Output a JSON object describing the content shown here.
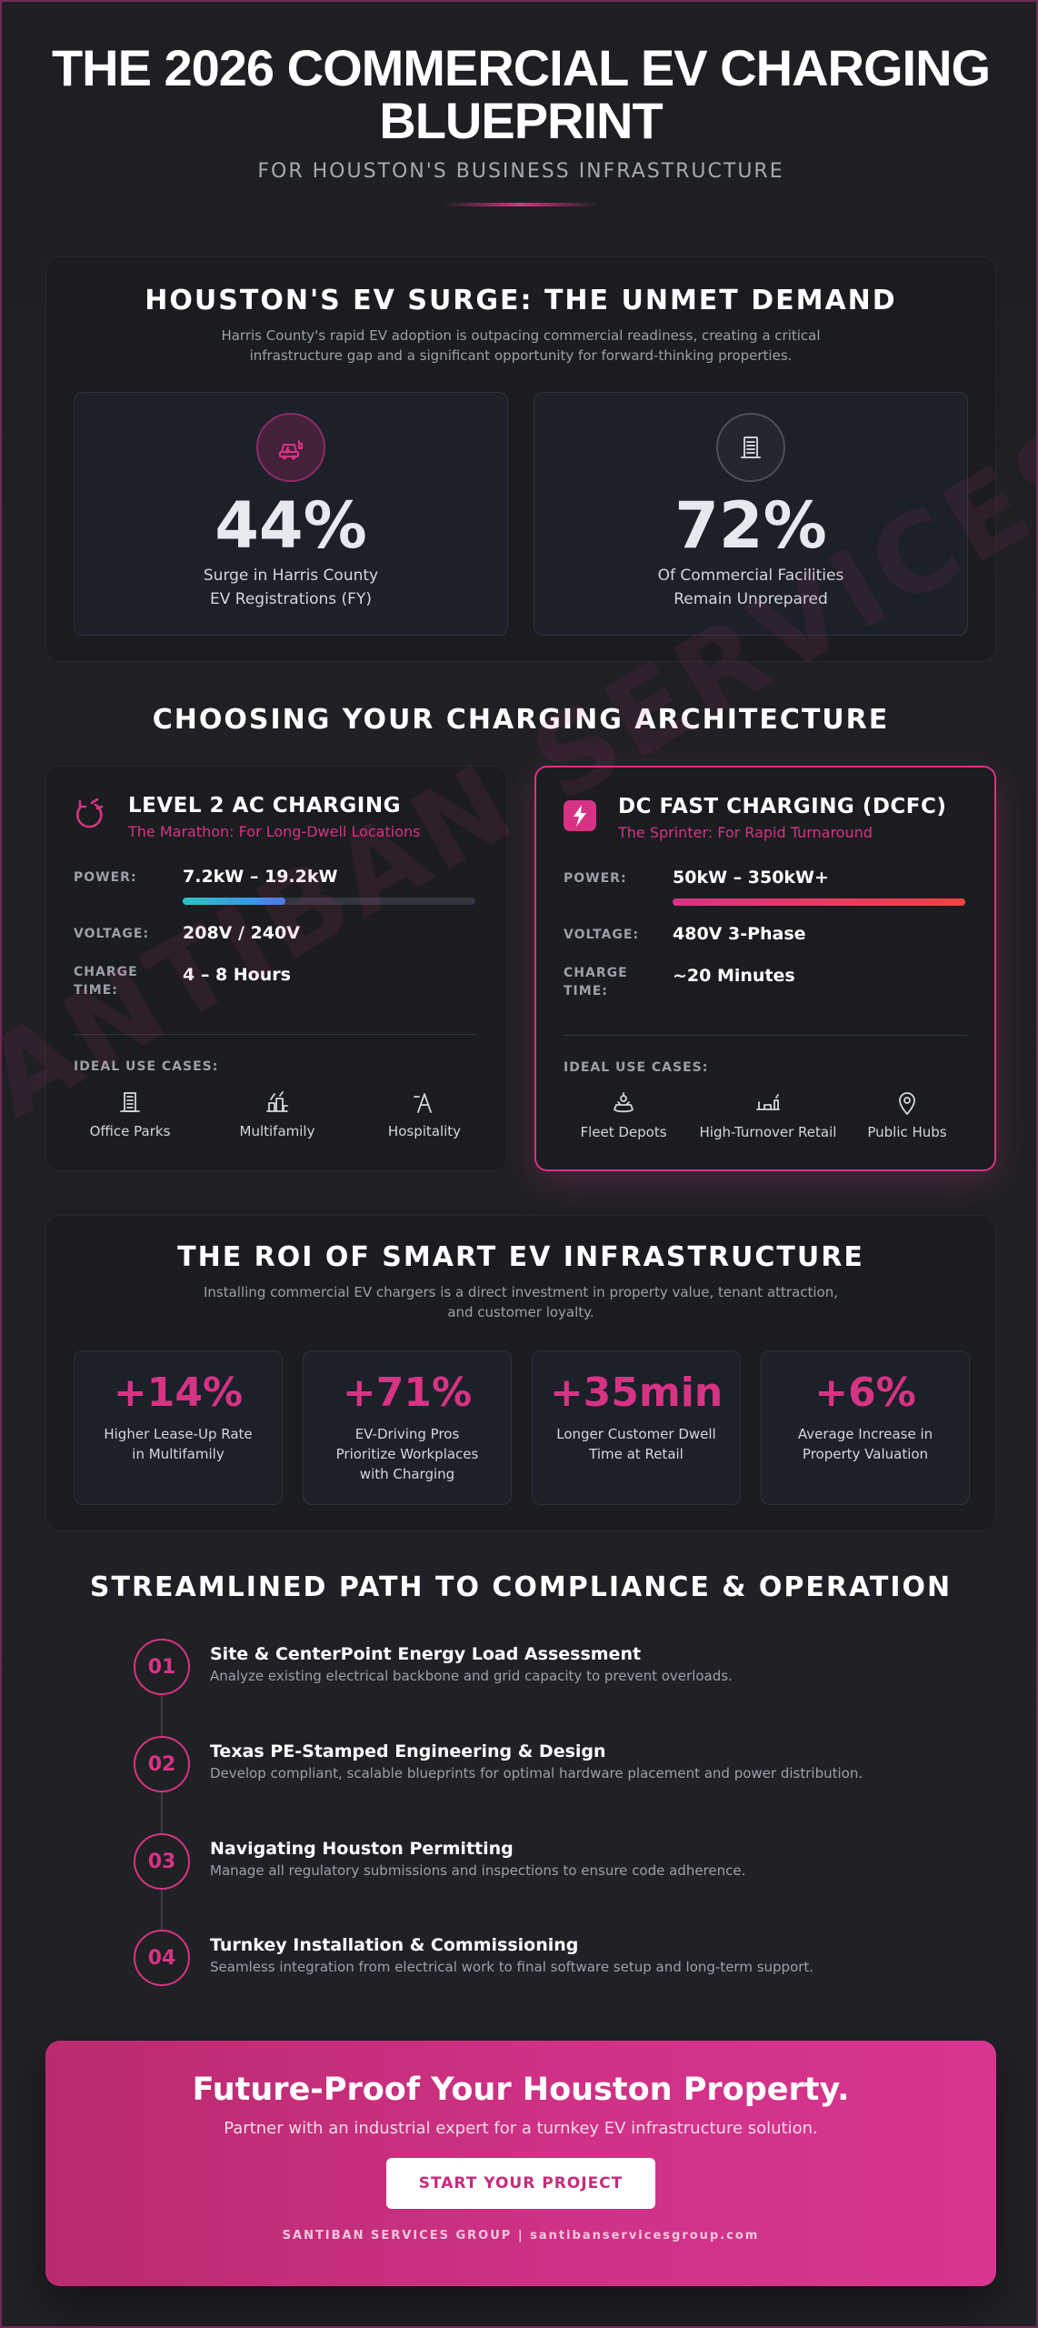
{
  "hero": {
    "title_line1": "THE 2026 COMMERCIAL EV CHARGING",
    "title_line2": "BLUEPRINT",
    "subtitle": "FOR HOUSTON'S BUSINESS INFRASTRUCTURE"
  },
  "watermark": "SANTIBAN SERVICES GROUP.CO",
  "surge": {
    "title": "HOUSTON'S EV SURGE: THE UNMET DEMAND",
    "desc_line1": "Harris County's rapid EV adoption is outpacing commercial readiness, creating a critical",
    "desc_line2": "infrastructure gap and a significant opportunity for forward-thinking properties.",
    "stats": [
      {
        "icon": "ev-car-charging-icon",
        "value": "44%",
        "label_line1": "Surge in Harris County",
        "label_line2": "EV Registrations (FY)"
      },
      {
        "icon": "building-icon",
        "value": "72%",
        "label_line1": "Of Commercial Facilities",
        "label_line2": "Remain Unprepared"
      }
    ]
  },
  "architecture": {
    "title": "CHOOSING YOUR CHARGING ARCHITECTURE",
    "cards": [
      {
        "icon": "charging-plug-icon",
        "title": "LEVEL 2 AC CHARGING",
        "tagline": "The Marathon: For Long-Dwell Locations",
        "power_key": "POWER:",
        "power": "7.2kW – 19.2kW",
        "power_bar_fraction": 0.35,
        "voltage_key": "VOLTAGE:",
        "voltage": "208V / 240V",
        "charge_key_line1": "CHARGE",
        "charge_key_line2": "TIME:",
        "charge_time": "4 – 8 Hours",
        "use_cases_key": "IDEAL USE CASES:",
        "use_cases": [
          {
            "icon": "office-building-icon",
            "label": "Office Parks"
          },
          {
            "icon": "multifamily-icon",
            "label": "Multifamily"
          },
          {
            "icon": "hospitality-icon",
            "label": "Hospitality"
          }
        ]
      },
      {
        "icon": "lightning-bolt-icon",
        "title": "DC FAST CHARGING (DCFC)",
        "tagline": "The Sprinter: For Rapid Turnaround",
        "power_key": "POWER:",
        "power": "50kW – 350kW+",
        "power_bar_fraction": 1.0,
        "voltage_key": "VOLTAGE:",
        "voltage": "480V 3-Phase",
        "charge_key_line1": "CHARGE",
        "charge_key_line2": "TIME:",
        "charge_time": "~20 Minutes",
        "use_cases_key": "IDEAL USE CASES:",
        "use_cases": [
          {
            "icon": "fleet-depot-icon",
            "label": "Fleet Depots"
          },
          {
            "icon": "retail-icon",
            "label": "High-Turnover Retail"
          },
          {
            "icon": "map-pin-icon",
            "label": "Public Hubs"
          }
        ]
      }
    ]
  },
  "roi": {
    "title": "THE ROI OF SMART EV INFRASTRUCTURE",
    "desc_line1": "Installing commercial EV chargers is a direct investment in property value, tenant attraction,",
    "desc_line2": "and customer loyalty.",
    "cards": [
      {
        "value": "+14%",
        "line1": "Higher Lease-Up Rate",
        "line2": "in Multifamily",
        "line3": ""
      },
      {
        "value": "+71%",
        "line1": "EV-Driving Pros",
        "line2": "Prioritize Workplaces",
        "line3": "with Charging"
      },
      {
        "value": "+35min",
        "line1": "Longer Customer Dwell",
        "line2": "Time at Retail",
        "line3": ""
      },
      {
        "value": "+6%",
        "line1": "Average Increase in",
        "line2": "Property Valuation",
        "line3": ""
      }
    ]
  },
  "path": {
    "title": "STREAMLINED PATH TO COMPLIANCE & OPERATION",
    "steps": [
      {
        "num": "01",
        "title": "Site & CenterPoint Energy Load Assessment",
        "desc": "Analyze existing electrical backbone and grid capacity to prevent overloads."
      },
      {
        "num": "02",
        "title": "Texas PE-Stamped Engineering & Design",
        "desc": "Develop compliant, scalable blueprints for optimal hardware placement and power distribution."
      },
      {
        "num": "03",
        "title": "Navigating Houston Permitting",
        "desc": "Manage all regulatory submissions and inspections to ensure code adherence."
      },
      {
        "num": "04",
        "title": "Turnkey Installation & Commissioning",
        "desc": "Seamless integration from electrical work to final software setup and long-term support."
      }
    ]
  },
  "cta": {
    "title": "Future-Proof Your Houston Property.",
    "subtitle": "Partner with an industrial expert for a turnkey EV infrastructure solution.",
    "button": "START YOUR PROJECT",
    "footer": "SANTIBAN SERVICES GROUP | santibanservicesgroup.com"
  },
  "colors": {
    "accent": "#d63384",
    "background": "#1f2024",
    "panel": "#1b1c1f",
    "card": "#1b2029",
    "level2_bar_start": "#2ec4c4",
    "level2_bar_end": "#3b82f6",
    "dc_bar_start": "#d63384",
    "dc_bar_end": "#ef4444"
  }
}
